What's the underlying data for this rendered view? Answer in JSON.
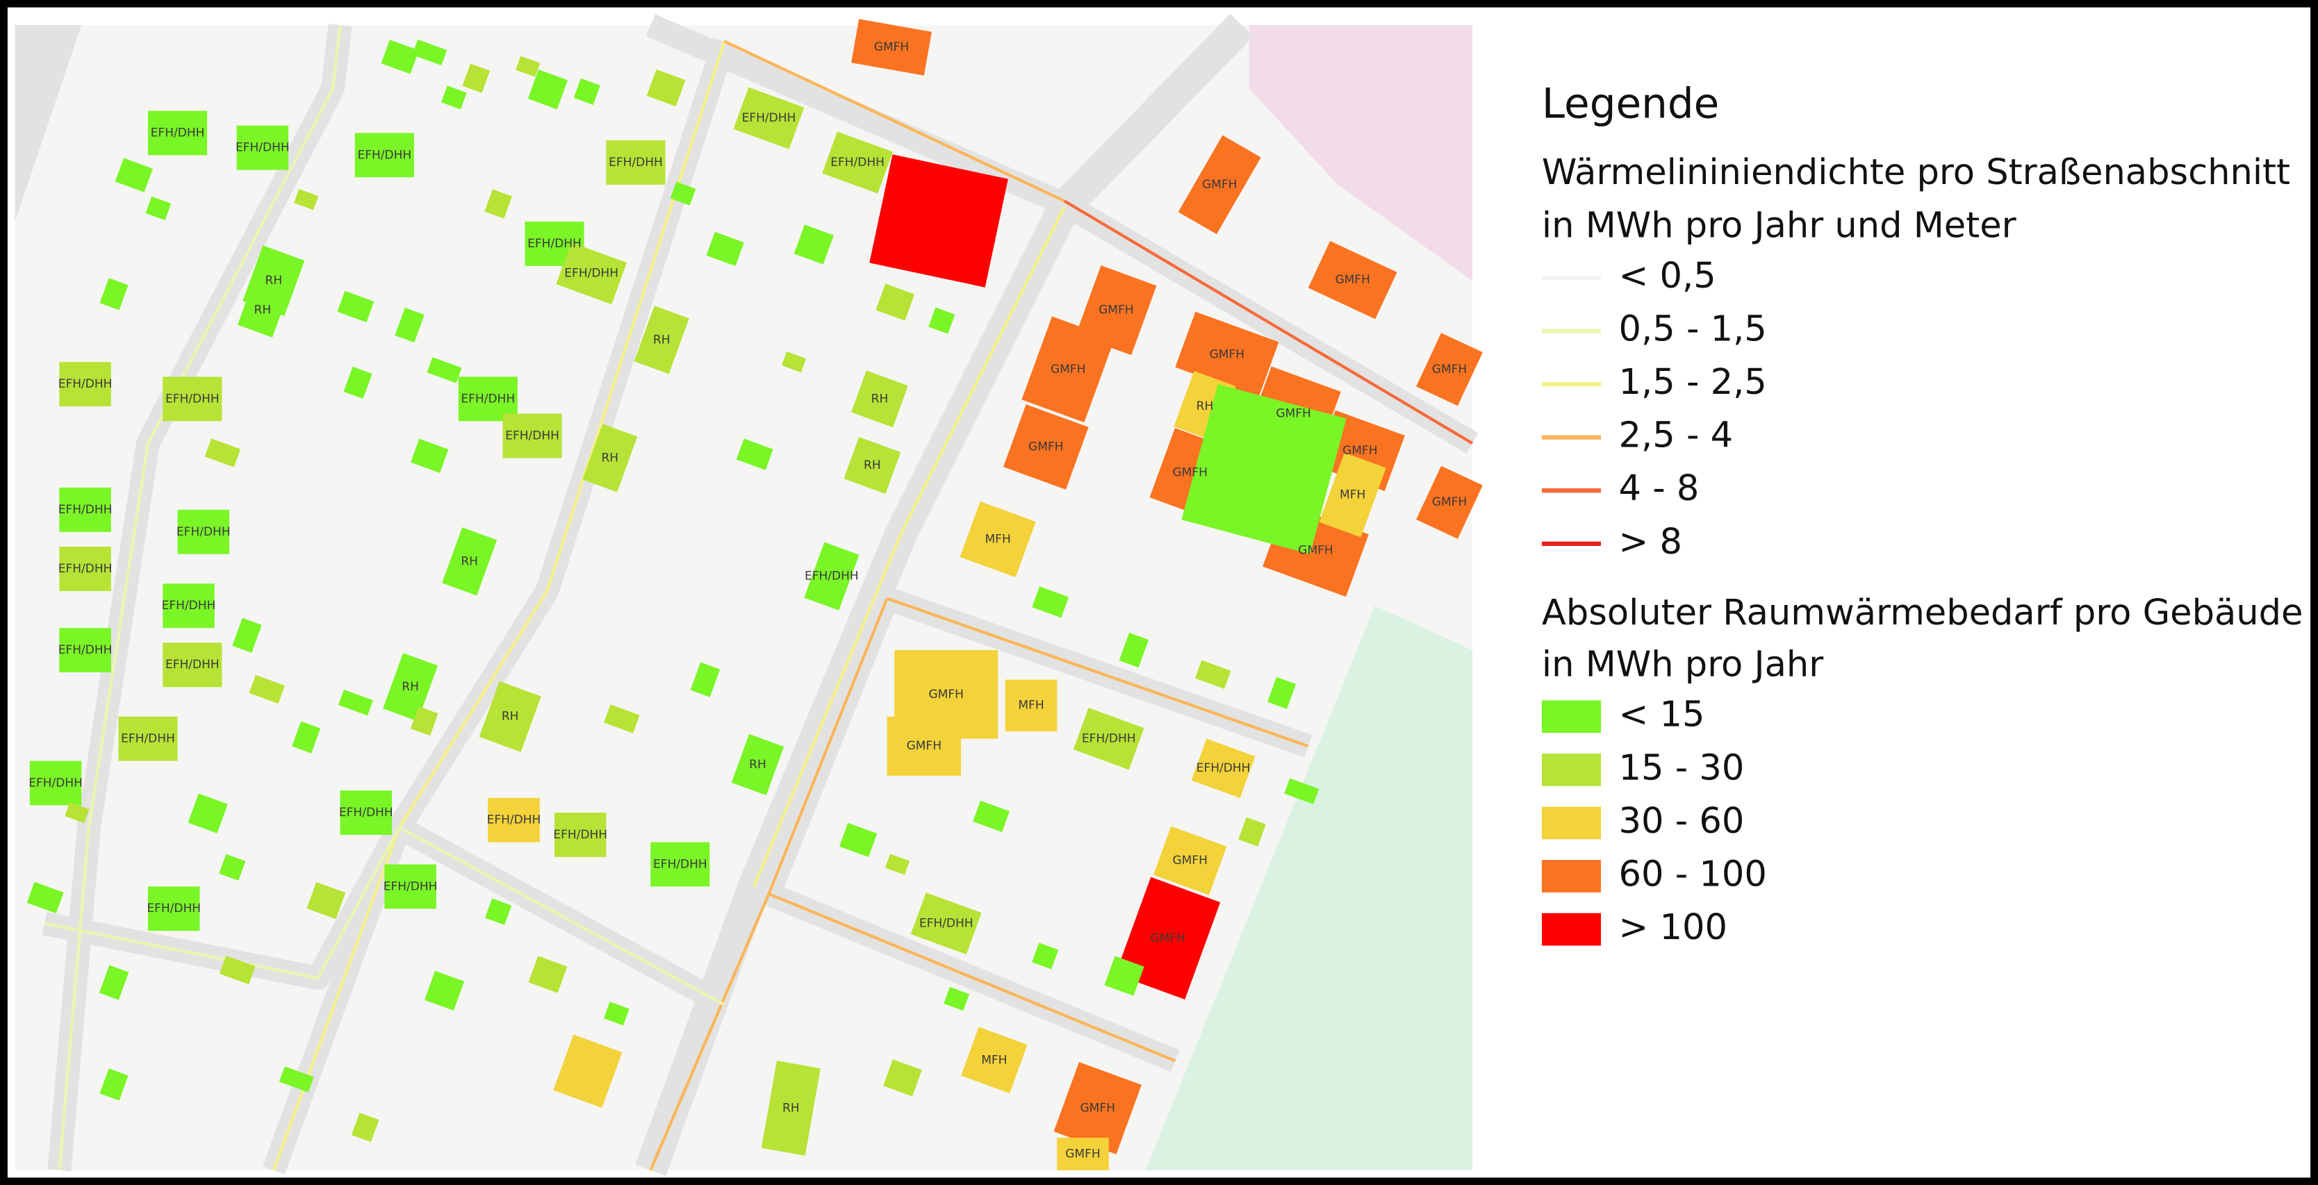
{
  "legend": {
    "title": "Legende",
    "line_section": {
      "title": [
        "Wärmelininiendichte pro Straßenabschnitt",
        "in MWh pro Jahr und Meter"
      ],
      "items": [
        {
          "label": "< 0,5",
          "color": "#f2f2f2"
        },
        {
          "label": "0,5 - 1,5",
          "color": "#eaf5b0"
        },
        {
          "label": "1,5 - 2,5",
          "color": "#f5f08a"
        },
        {
          "label": "2,5 - 4",
          "color": "#fbb55a"
        },
        {
          "label": "4 - 8",
          "color": "#f66a3a"
        },
        {
          "label": "> 8",
          "color": "#e8201c"
        }
      ]
    },
    "building_section": {
      "title": [
        "Absoluter Raumwärmebedarf pro Gebäude",
        "in MWh pro Jahr"
      ],
      "items": [
        {
          "label": "< 15",
          "color": "#7af526"
        },
        {
          "label": "15 - 30",
          "color": "#b6e335"
        },
        {
          "label": "30 - 60",
          "color": "#f3d23a"
        },
        {
          "label": "60 - 100",
          "color": "#fa7321"
        },
        {
          "label": "> 100",
          "color": "#ff0000"
        }
      ]
    }
  },
  "map": {
    "labels": [
      "GMFH",
      "GMFH",
      "GMFH",
      "GMFH",
      "GMFH",
      "GMFH",
      "GMFH",
      "GMFH",
      "GMFH",
      "GMFH",
      "GMFH",
      "GMFH",
      "GMFH",
      "GMFH",
      "GMFH",
      "GMFH",
      "GMFH",
      "GMFH",
      "GMFH",
      "MFH",
      "MFH",
      "MFH",
      "MFH",
      "RH",
      "RH",
      "RH",
      "RH",
      "RH",
      "RH",
      "RH",
      "RH",
      "RH",
      "RH",
      "RH",
      "RH",
      "EFH/DHH",
      "EFH/DHH",
      "EFH/DHH",
      "EFH/DHH",
      "EFH/DHH",
      "EFH/DHH",
      "EFH/DHH",
      "EFH/DHH",
      "EFH/DHH",
      "EFH/DHH",
      "EFH/DHH",
      "EFH/DHH",
      "EFH/DHH",
      "EFH/DHH",
      "EFH/DHH",
      "EFH/DHH",
      "EFH/DHH",
      "EFH/DHH",
      "EFH/DHH",
      "EFH/DHH",
      "EFH/DHH",
      "EFH/DHH",
      "EFH/DHH",
      "EFH/DHH",
      "EFH/DHH",
      "EFH/DHH",
      "EFH/DHH",
      "EFH/DHH",
      "EFH/DHH",
      "EFH/DHH"
    ]
  }
}
